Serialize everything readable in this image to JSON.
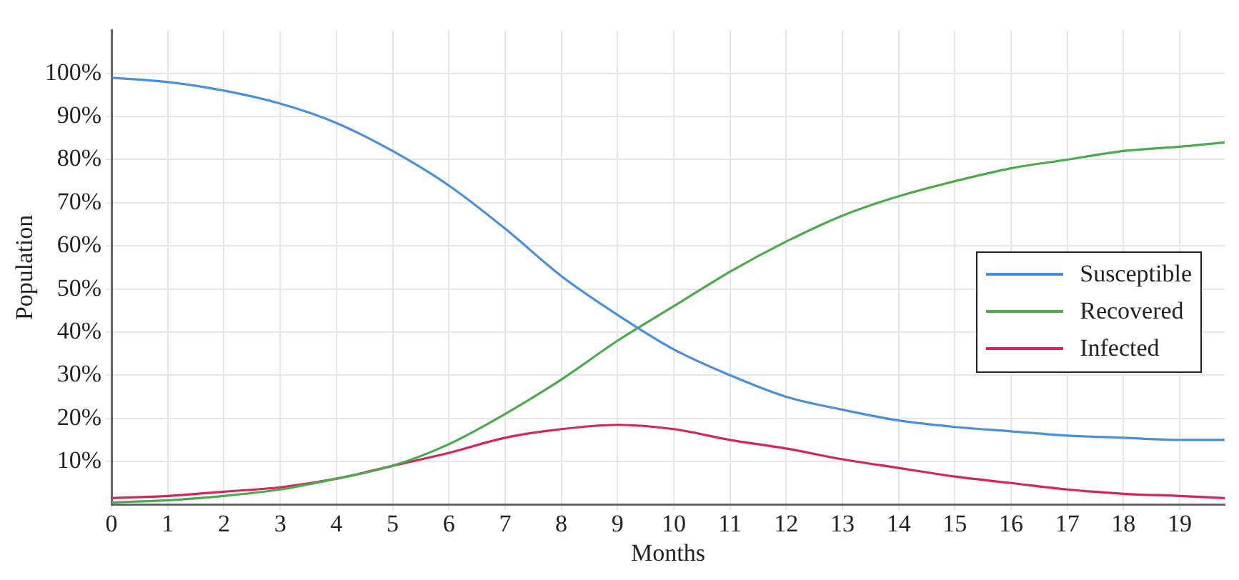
{
  "chart_data": {
    "type": "line",
    "xlabel": "Months",
    "ylabel": "Population",
    "x": [
      0,
      1,
      2,
      3,
      4,
      5,
      6,
      7,
      8,
      9,
      10,
      11,
      12,
      13,
      14,
      15,
      16,
      17,
      18,
      19,
      19.8
    ],
    "series": [
      {
        "name": "Susceptible",
        "color": "#4a90d9",
        "values": [
          99,
          98,
          96,
          93,
          88.5,
          82,
          74,
          64,
          53,
          44,
          36,
          30,
          25,
          22,
          19.5,
          18,
          17,
          16,
          15.5,
          15,
          15
        ]
      },
      {
        "name": "Recovered",
        "color": "#4caa4c",
        "values": [
          0.5,
          1,
          2,
          3.5,
          6,
          9,
          14,
          21,
          29,
          38,
          46,
          54,
          61,
          67,
          71.5,
          75,
          78,
          80,
          82,
          83,
          84
        ]
      },
      {
        "name": "Infected",
        "color": "#d6245a",
        "values": [
          1.5,
          2,
          3,
          4,
          6,
          9,
          12,
          15.5,
          17.5,
          18.5,
          17.5,
          15,
          13,
          10.5,
          8.5,
          6.5,
          5,
          3.5,
          2.5,
          2,
          1.5
        ]
      }
    ],
    "xlim": [
      0,
      19.8
    ],
    "ylim": [
      0,
      110
    ],
    "xticks": [
      0,
      1,
      2,
      3,
      4,
      5,
      6,
      7,
      8,
      9,
      10,
      11,
      12,
      13,
      14,
      15,
      16,
      17,
      18,
      19
    ],
    "yticks": [
      {
        "value": 10,
        "label": "10%"
      },
      {
        "value": 20,
        "label": "20%"
      },
      {
        "value": 30,
        "label": "30%"
      },
      {
        "value": 40,
        "label": "40%"
      },
      {
        "value": 50,
        "label": "50%"
      },
      {
        "value": 60,
        "label": "60%"
      },
      {
        "value": 70,
        "label": "70%"
      },
      {
        "value": 80,
        "label": "80%"
      },
      {
        "value": 90,
        "label": "90%"
      },
      {
        "value": 100,
        "label": "100%"
      }
    ],
    "grid": true,
    "legend": "right",
    "marker": "none",
    "line_style": "solid"
  }
}
